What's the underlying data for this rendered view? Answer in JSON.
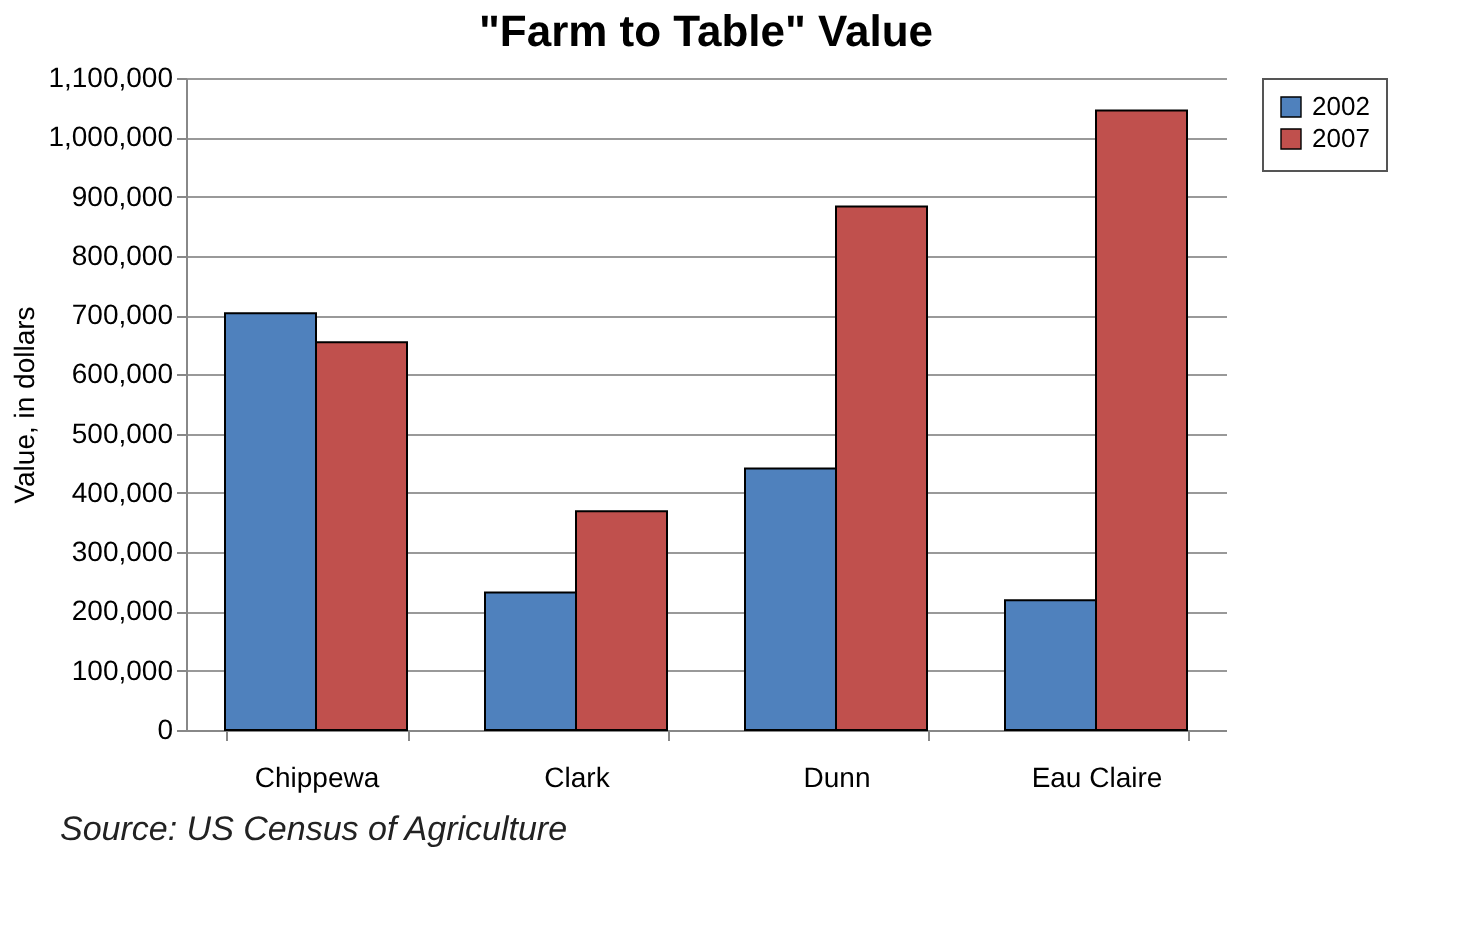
{
  "chart_data": {
    "type": "bar",
    "title": "\"Farm to Table\" Value",
    "ylabel": "Value, in dollars",
    "categories": [
      "Chippewa",
      "Clark",
      "Dunn",
      "Eau Claire"
    ],
    "series": [
      {
        "name": "2002",
        "color": "#4f81bd",
        "values": [
          703000,
          232000,
          441000,
          219000
        ]
      },
      {
        "name": "2007",
        "color": "#c0504d",
        "values": [
          654000,
          369000,
          883000,
          1045000
        ]
      }
    ],
    "ylim": [
      0,
      1100000
    ],
    "yticks": [
      0,
      {
        "value": 100000,
        "label": "100,000"
      },
      {
        "value": 200000,
        "label": "200,000"
      },
      {
        "value": 300000,
        "label": "300,000"
      },
      {
        "value": 400000,
        "label": "400,000"
      },
      {
        "value": 500000,
        "label": "500,000"
      },
      {
        "value": 600000,
        "label": "600,000"
      },
      {
        "value": 700000,
        "label": "700,000"
      },
      {
        "value": 800000,
        "label": "800,000"
      },
      {
        "value": 900000,
        "label": "900,000"
      },
      {
        "value": 1000000,
        "label": "1,000,000"
      },
      {
        "value": 1100000,
        "label": "1,100,000"
      }
    ],
    "grid": "y",
    "legend": "right",
    "annotations": [
      "Source: US Census of Agriculture"
    ]
  }
}
